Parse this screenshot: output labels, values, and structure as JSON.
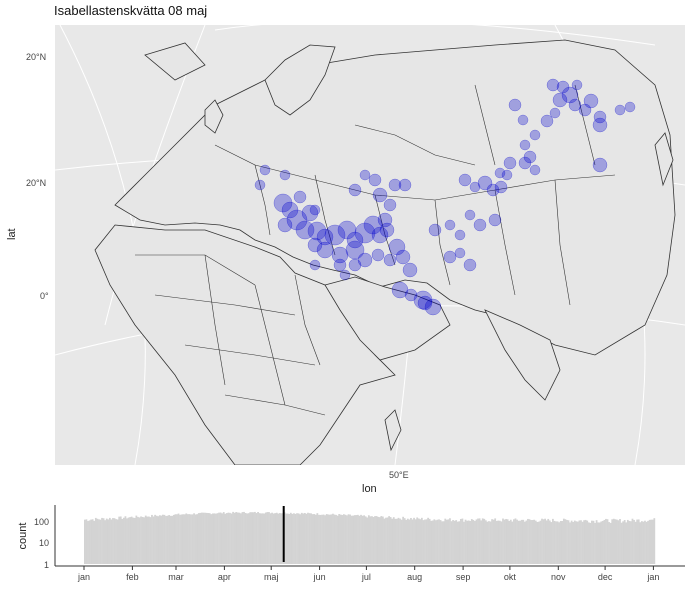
{
  "title": "Isabellastenskvätta 08 maj",
  "map": {
    "xlabel": "lon",
    "ylabel": "lat",
    "x_tick": "50°E",
    "y_ticks": [
      "20°N",
      "20°N",
      "0°"
    ],
    "point_color": "#0000cc"
  },
  "chart_data": {
    "type": "bar",
    "ylabel": "count",
    "y_scale": "log",
    "y_ticks": [
      "100",
      "10",
      "1"
    ],
    "month_labels": [
      "jan",
      "feb",
      "mar",
      "apr",
      "maj",
      "jun",
      "jul",
      "aug",
      "sep",
      "okt",
      "nov",
      "dec",
      "jan"
    ],
    "marker_label": "08 maj",
    "marker_day": 128,
    "bar_color": "#d3d3d3"
  }
}
